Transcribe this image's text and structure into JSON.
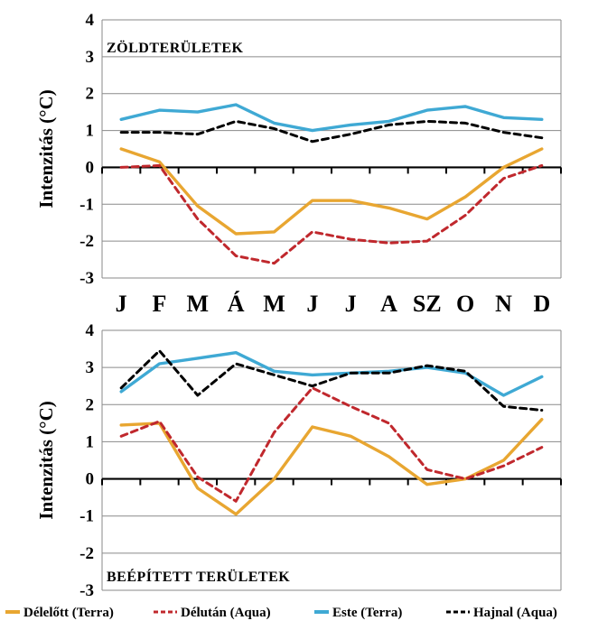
{
  "chart_data": [
    {
      "type": "line",
      "title": "ZÖLDTERÜLETEK",
      "ylabel": "Intenzitás (°C)",
      "xlabel": "",
      "ylim": [
        -3,
        4
      ],
      "yticks": [
        4,
        3,
        2,
        1,
        0,
        -1,
        -2,
        -3
      ],
      "grid": true,
      "categories": [
        "J",
        "F",
        "M",
        "Á",
        "M",
        "J",
        "J",
        "A",
        "SZ",
        "O",
        "N",
        "D"
      ],
      "series": [
        {
          "name": "Délelőtt (Terra)",
          "color": "#E8A631",
          "dash": "solid",
          "values": [
            0.5,
            0.15,
            -1.05,
            -1.8,
            -1.75,
            -0.9,
            -0.9,
            -1.1,
            -1.4,
            -0.8,
            0.0,
            0.5
          ]
        },
        {
          "name": "Délután (Aqua)",
          "color": "#C0282D",
          "dash": "dashed",
          "values": [
            0.0,
            0.05,
            -1.4,
            -2.4,
            -2.6,
            -1.75,
            -1.95,
            -2.05,
            -2.0,
            -1.3,
            -0.3,
            0.05
          ]
        },
        {
          "name": "Este (Terra)",
          "color": "#3FA9D4",
          "dash": "solid",
          "values": [
            1.3,
            1.55,
            1.5,
            1.7,
            1.2,
            1.0,
            1.15,
            1.25,
            1.55,
            1.65,
            1.35,
            1.3
          ]
        },
        {
          "name": "Hajnal (Aqua)",
          "color": "#000000",
          "dash": "dashed",
          "values": [
            0.95,
            0.95,
            0.9,
            1.25,
            1.05,
            0.7,
            0.9,
            1.15,
            1.25,
            1.2,
            0.95,
            0.8
          ]
        }
      ]
    },
    {
      "type": "line",
      "title": "BEÉPÍTETT TERÜLETEK",
      "ylabel": "Intenzitás (°C)",
      "xlabel": "",
      "ylim": [
        -3,
        4
      ],
      "yticks": [
        4,
        3,
        2,
        1,
        0,
        -1,
        -2,
        -3
      ],
      "grid": true,
      "categories": [
        "J",
        "F",
        "M",
        "Á",
        "M",
        "J",
        "J",
        "A",
        "SZ",
        "O",
        "N",
        "D"
      ],
      "series": [
        {
          "name": "Délelőtt (Terra)",
          "color": "#E8A631",
          "dash": "solid",
          "values": [
            1.45,
            1.5,
            -0.25,
            -0.95,
            0.0,
            1.4,
            1.15,
            0.6,
            -0.15,
            0.0,
            0.5,
            1.6
          ]
        },
        {
          "name": "Délután (Aqua)",
          "color": "#C0282D",
          "dash": "dashed",
          "values": [
            1.15,
            1.55,
            0.05,
            -0.6,
            1.25,
            2.45,
            1.95,
            1.5,
            0.25,
            0.0,
            0.35,
            0.85
          ]
        },
        {
          "name": "Este (Terra)",
          "color": "#3FA9D4",
          "dash": "solid",
          "values": [
            2.35,
            3.1,
            3.25,
            3.4,
            2.9,
            2.8,
            2.85,
            2.9,
            3.0,
            2.85,
            2.25,
            2.75
          ]
        },
        {
          "name": "Hajnal (Aqua)",
          "color": "#000000",
          "dash": "dashed",
          "values": [
            2.45,
            3.45,
            2.25,
            3.1,
            2.8,
            2.5,
            2.85,
            2.85,
            3.05,
            2.9,
            1.95,
            1.85
          ]
        }
      ]
    }
  ],
  "month_labels": [
    "J",
    "F",
    "M",
    "Á",
    "M",
    "J",
    "J",
    "A",
    "SZ",
    "O",
    "N",
    "D"
  ],
  "legend": [
    {
      "name": "Délelőtt (Terra)",
      "color": "#E8A631",
      "dash": "solid"
    },
    {
      "name": "Délután (Aqua)",
      "color": "#C0282D",
      "dash": "dashed"
    },
    {
      "name": "Este (Terra)",
      "color": "#3FA9D4",
      "dash": "solid"
    },
    {
      "name": "Hajnal (Aqua)",
      "color": "#000000",
      "dash": "dashed"
    }
  ]
}
